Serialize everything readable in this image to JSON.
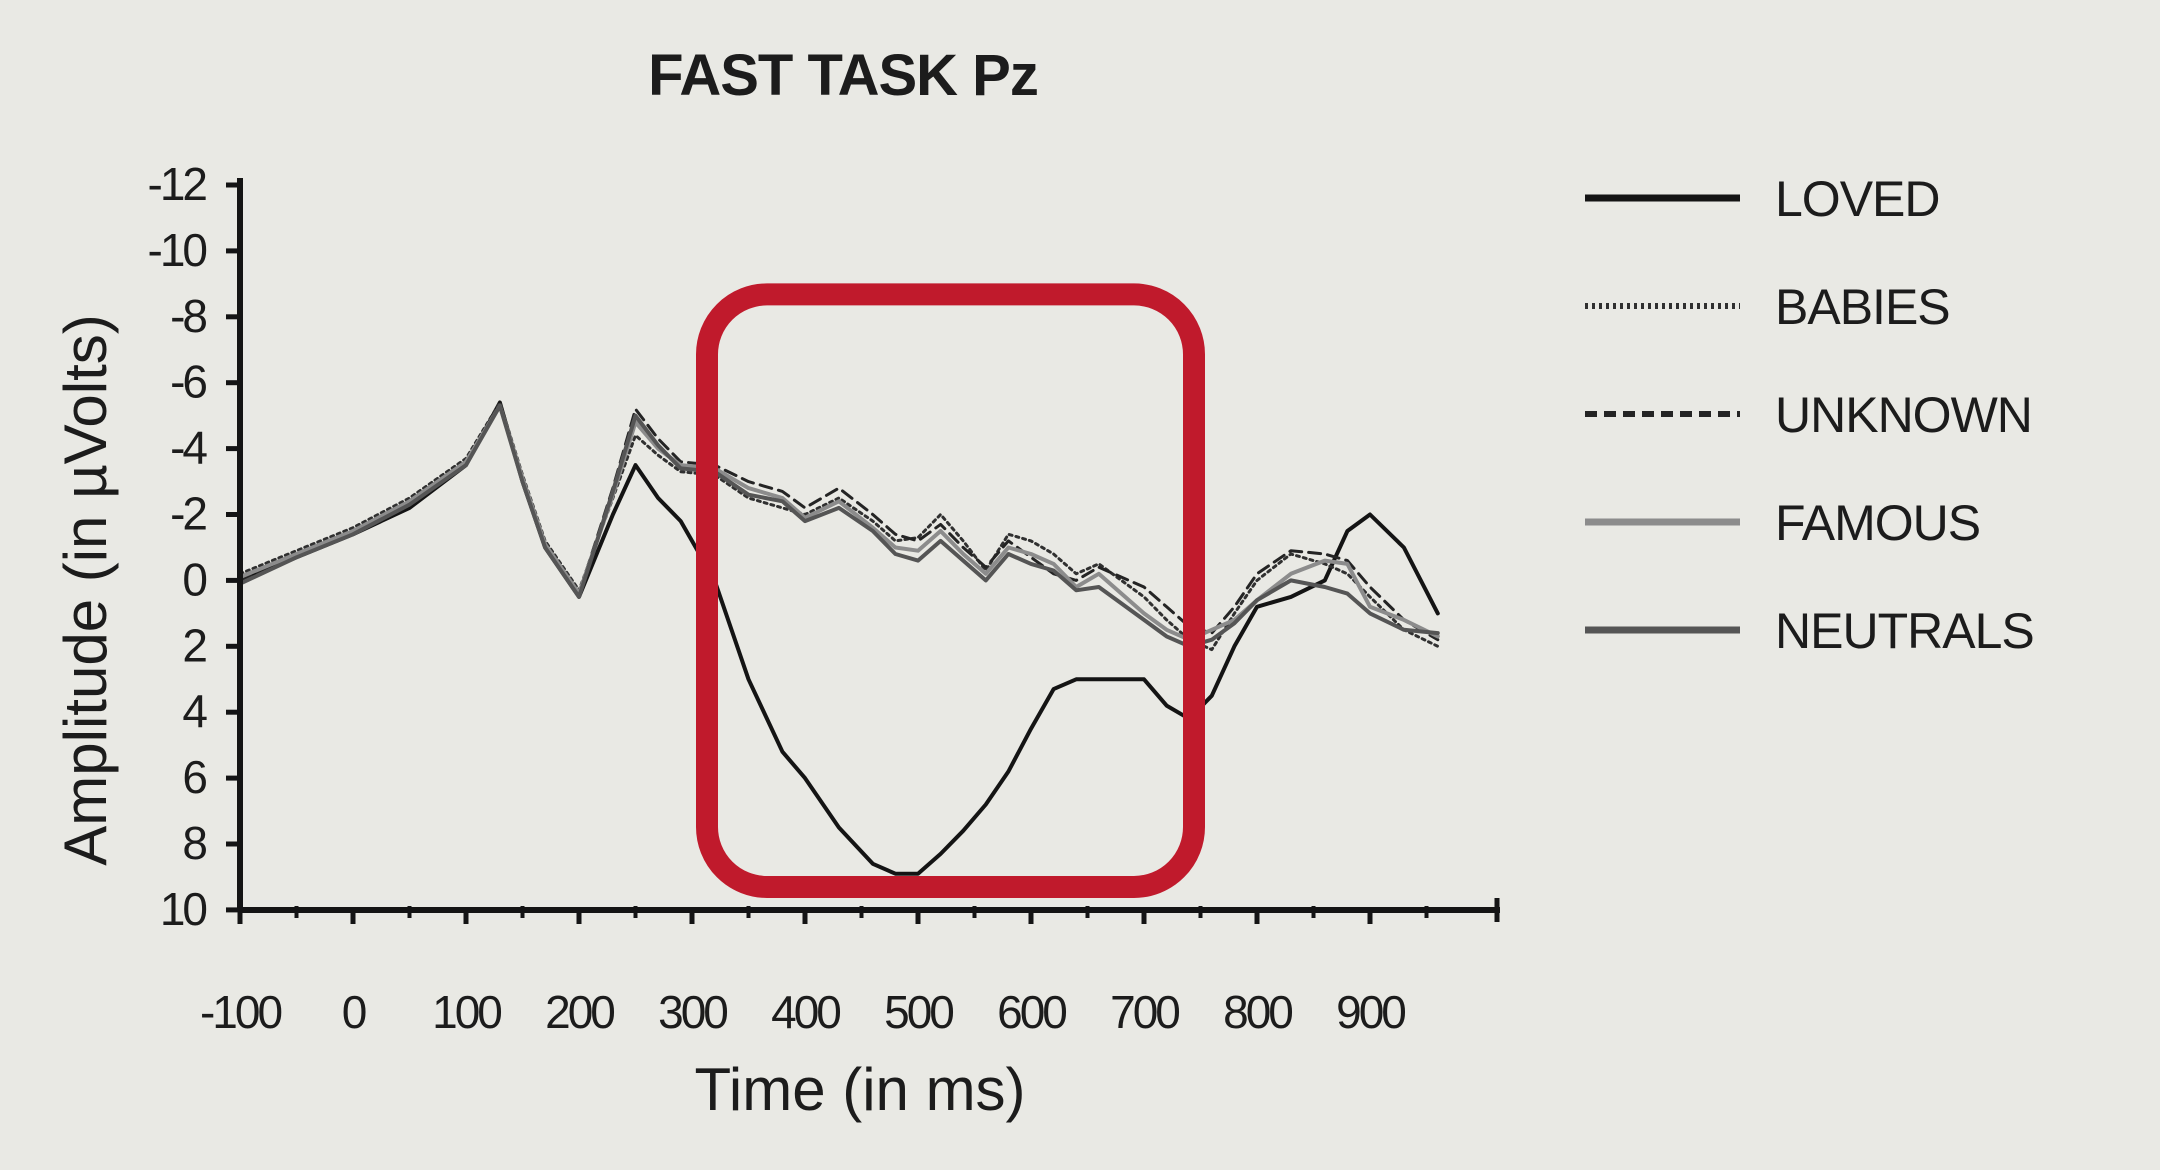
{
  "chart_data": {
    "type": "line",
    "title": "FAST TASK Pz",
    "xlabel": "Time (in ms)",
    "ylabel": "Amplitude (in µVolts)",
    "xlim": [
      -100,
      1000
    ],
    "ylim": [
      -12,
      10
    ],
    "y_inverted": true,
    "x_ticks": [
      -100,
      0,
      100,
      200,
      300,
      400,
      500,
      600,
      700,
      800,
      900
    ],
    "y_ticks": [
      -12,
      -10,
      -8,
      -6,
      -4,
      -2,
      0,
      2,
      4,
      6,
      8,
      10
    ],
    "y_tick_labels": [
      "-12",
      "-10",
      "-8",
      "-6",
      "-4",
      "-2",
      "0",
      "2",
      "4",
      "6",
      "8",
      "10"
    ],
    "legend_position": "right",
    "highlight": {
      "x_range": [
        300,
        700
      ],
      "y_range": [
        -10.5,
        9
      ],
      "color": "#c01a2c"
    },
    "series": [
      {
        "name": "LOVED",
        "style": "solid",
        "color": "#141414",
        "width": 4,
        "x": [
          -100,
          -50,
          0,
          50,
          100,
          130,
          150,
          170,
          200,
          230,
          250,
          270,
          290,
          320,
          350,
          380,
          400,
          430,
          460,
          480,
          500,
          520,
          540,
          560,
          580,
          600,
          620,
          640,
          660,
          700,
          720,
          740,
          760,
          780,
          800,
          830,
          860,
          880,
          900,
          930,
          960
        ],
        "y": [
          0,
          -0.7,
          -1.4,
          -2.2,
          -3.5,
          -5.4,
          -3,
          -1,
          0.5,
          -2,
          -3.5,
          -2.5,
          -1.8,
          0,
          3,
          5.2,
          6,
          7.5,
          8.6,
          8.9,
          8.9,
          8.3,
          7.6,
          6.8,
          5.8,
          4.5,
          3.3,
          3,
          3,
          3,
          3.8,
          4.2,
          3.5,
          2,
          0.8,
          0.5,
          0,
          -1.5,
          -2,
          -1,
          1
        ]
      },
      {
        "name": "BABIES",
        "style": "dotted",
        "color": "#303030",
        "width": 3,
        "x": [
          -100,
          -50,
          0,
          50,
          100,
          130,
          150,
          170,
          200,
          230,
          250,
          270,
          290,
          320,
          350,
          380,
          400,
          430,
          460,
          480,
          500,
          520,
          540,
          560,
          580,
          600,
          620,
          640,
          660,
          700,
          720,
          740,
          760,
          780,
          800,
          830,
          860,
          880,
          900,
          930,
          960
        ],
        "y": [
          -0.2,
          -0.9,
          -1.6,
          -2.5,
          -3.7,
          -5.4,
          -3.2,
          -1.2,
          0.3,
          -2.5,
          -4.4,
          -3.8,
          -3.3,
          -3.2,
          -2.5,
          -2.2,
          -2,
          -2.5,
          -1.8,
          -1.2,
          -1.3,
          -2,
          -1.2,
          -0.3,
          -1.4,
          -1.2,
          -0.8,
          -0.2,
          -0.5,
          0.5,
          1.2,
          1.8,
          2.1,
          1,
          0,
          -0.8,
          -0.5,
          -0.2,
          0.5,
          1.5,
          2
        ]
      },
      {
        "name": "UNKNOWN",
        "style": "dashed",
        "color": "#242424",
        "width": 3,
        "x": [
          -100,
          -50,
          0,
          50,
          100,
          130,
          150,
          170,
          200,
          230,
          250,
          270,
          290,
          320,
          350,
          380,
          400,
          430,
          460,
          480,
          500,
          520,
          540,
          560,
          580,
          600,
          620,
          640,
          660,
          700,
          720,
          740,
          760,
          780,
          800,
          830,
          860,
          880,
          900,
          930,
          960
        ],
        "y": [
          0,
          -0.8,
          -1.5,
          -2.3,
          -3.6,
          -5.3,
          -3.1,
          -1.1,
          0.4,
          -2.8,
          -5.2,
          -4.3,
          -3.6,
          -3.5,
          -3,
          -2.7,
          -2.2,
          -2.8,
          -2,
          -1.4,
          -1.2,
          -1.7,
          -1,
          -0.4,
          -1.2,
          -0.7,
          -0.2,
          0,
          -0.4,
          0.2,
          0.8,
          1.4,
          1.6,
          0.8,
          -0.2,
          -0.9,
          -0.8,
          -0.6,
          0.2,
          1.2,
          1.8
        ]
      },
      {
        "name": "FAMOUS",
        "style": "solid",
        "color": "#8c8c8c",
        "width": 4,
        "x": [
          -100,
          -50,
          0,
          50,
          100,
          130,
          150,
          170,
          200,
          230,
          250,
          270,
          290,
          320,
          350,
          380,
          400,
          430,
          460,
          480,
          500,
          520,
          540,
          560,
          580,
          600,
          620,
          640,
          660,
          700,
          720,
          740,
          760,
          780,
          800,
          830,
          860,
          880,
          900,
          930,
          960
        ],
        "y": [
          -0.1,
          -0.8,
          -1.5,
          -2.4,
          -3.6,
          -5.3,
          -3.1,
          -1.1,
          0.4,
          -2.6,
          -4.8,
          -4,
          -3.5,
          -3.4,
          -2.8,
          -2.5,
          -1.9,
          -2.4,
          -1.6,
          -1,
          -0.9,
          -1.5,
          -0.8,
          -0.2,
          -1,
          -0.8,
          -0.5,
          0.2,
          -0.2,
          1,
          1.5,
          1.8,
          1.5,
          1.2,
          0.6,
          -0.2,
          -0.6,
          -0.5,
          0.8,
          1.2,
          1.7
        ]
      },
      {
        "name": "NEUTRALS",
        "style": "solid",
        "color": "#555555",
        "width": 4,
        "x": [
          -100,
          -50,
          0,
          50,
          100,
          130,
          150,
          170,
          200,
          230,
          250,
          270,
          290,
          320,
          350,
          380,
          400,
          430,
          460,
          480,
          500,
          520,
          540,
          560,
          580,
          600,
          620,
          640,
          660,
          700,
          720,
          740,
          760,
          780,
          800,
          830,
          860,
          880,
          900,
          930,
          960
        ],
        "y": [
          0.1,
          -0.7,
          -1.4,
          -2.3,
          -3.5,
          -5.3,
          -3,
          -1,
          0.5,
          -2.7,
          -5,
          -4.1,
          -3.4,
          -3.3,
          -2.6,
          -2.4,
          -1.8,
          -2.2,
          -1.5,
          -0.8,
          -0.6,
          -1.2,
          -0.6,
          0,
          -0.8,
          -0.5,
          -0.3,
          0.3,
          0.2,
          1.2,
          1.7,
          2,
          1.8,
          1.3,
          0.6,
          0,
          0.2,
          0.4,
          1,
          1.5,
          1.6
        ]
      }
    ]
  }
}
